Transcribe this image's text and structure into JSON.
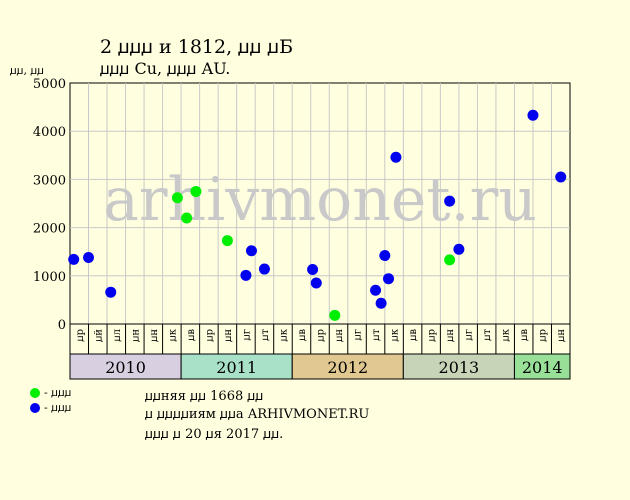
{
  "header": {
    "title_line1": "2 ꙡꙡꙡ и 1812, ꙡꙡ ꙡБ",
    "title_line2": "ꙡꙡꙡ Cu, ꙡꙡꙡ AU."
  },
  "legend": {
    "items": [
      {
        "label": "- ꙡꙡꙡ",
        "color": "#00ee00"
      },
      {
        "label": "- ꙡꙡꙡ",
        "color": "#0000ee"
      }
    ]
  },
  "notes": [
    "ꙡꙡняя ꙡꙡ 1668 ꙡꙡ",
    "ꙡ ꙡꙡꙡꙡиям ꙡꙡа ARHIVMONET.RU",
    "ꙡꙡꙡ ꙡ 20 ꙡя 2017 ꙡꙡ."
  ],
  "watermark": "arhivmonet.ru",
  "chart_data": {
    "type": "scatter",
    "ylabel": "ꙡꙡ, ꙡꙡ",
    "ylim": [
      0,
      5000
    ],
    "yticks": [
      0,
      1000,
      2000,
      3000,
      4000,
      5000
    ],
    "grid": true,
    "month_labels": [
      "ꙡр",
      "ꙡй",
      "ꙡл",
      "ꙡн",
      "ꙡн",
      "ꙡк",
      "ꙡв",
      "ꙡр",
      "ꙡн",
      "ꙡг",
      "ꙡт",
      "ꙡк",
      "ꙡв",
      "ꙡр",
      "ꙡн",
      "ꙡг",
      "ꙡт",
      "ꙡк",
      "ꙡв",
      "ꙡр",
      "ꙡн",
      "ꙡг",
      "ꙡт",
      "ꙡк",
      "ꙡв",
      "ꙡр",
      "ꙡн"
    ],
    "years": [
      {
        "label": "2010",
        "start": 0,
        "end": 6,
        "color": "#d8d0e0"
      },
      {
        "label": "2011",
        "start": 6,
        "end": 12,
        "color": "#a8e0c8"
      },
      {
        "label": "2012",
        "start": 12,
        "end": 18,
        "color": "#e0c890"
      },
      {
        "label": "2013",
        "start": 18,
        "end": 24,
        "color": "#c8d4b8"
      },
      {
        "label": "2014",
        "start": 24,
        "end": 27,
        "color": "#98e098"
      }
    ],
    "series": [
      {
        "color": "#00ee00",
        "points": [
          {
            "x": 5.8,
            "y": 2620
          },
          {
            "x": 6.3,
            "y": 2200
          },
          {
            "x": 6.8,
            "y": 2750
          },
          {
            "x": 8.5,
            "y": 1730
          },
          {
            "x": 14.3,
            "y": 180
          },
          {
            "x": 20.5,
            "y": 1330
          }
        ]
      },
      {
        "color": "#0000ee",
        "points": [
          {
            "x": 0.2,
            "y": 1340
          },
          {
            "x": 1.0,
            "y": 1380
          },
          {
            "x": 2.2,
            "y": 660
          },
          {
            "x": 9.5,
            "y": 1010
          },
          {
            "x": 9.8,
            "y": 1520
          },
          {
            "x": 10.5,
            "y": 1140
          },
          {
            "x": 13.1,
            "y": 1130
          },
          {
            "x": 13.3,
            "y": 850
          },
          {
            "x": 16.5,
            "y": 700
          },
          {
            "x": 16.8,
            "y": 430
          },
          {
            "x": 17.0,
            "y": 1420
          },
          {
            "x": 17.2,
            "y": 940
          },
          {
            "x": 17.6,
            "y": 3460
          },
          {
            "x": 20.5,
            "y": 2550
          },
          {
            "x": 21.0,
            "y": 1550
          },
          {
            "x": 25.0,
            "y": 4330
          },
          {
            "x": 26.5,
            "y": 3050
          }
        ]
      }
    ]
  }
}
